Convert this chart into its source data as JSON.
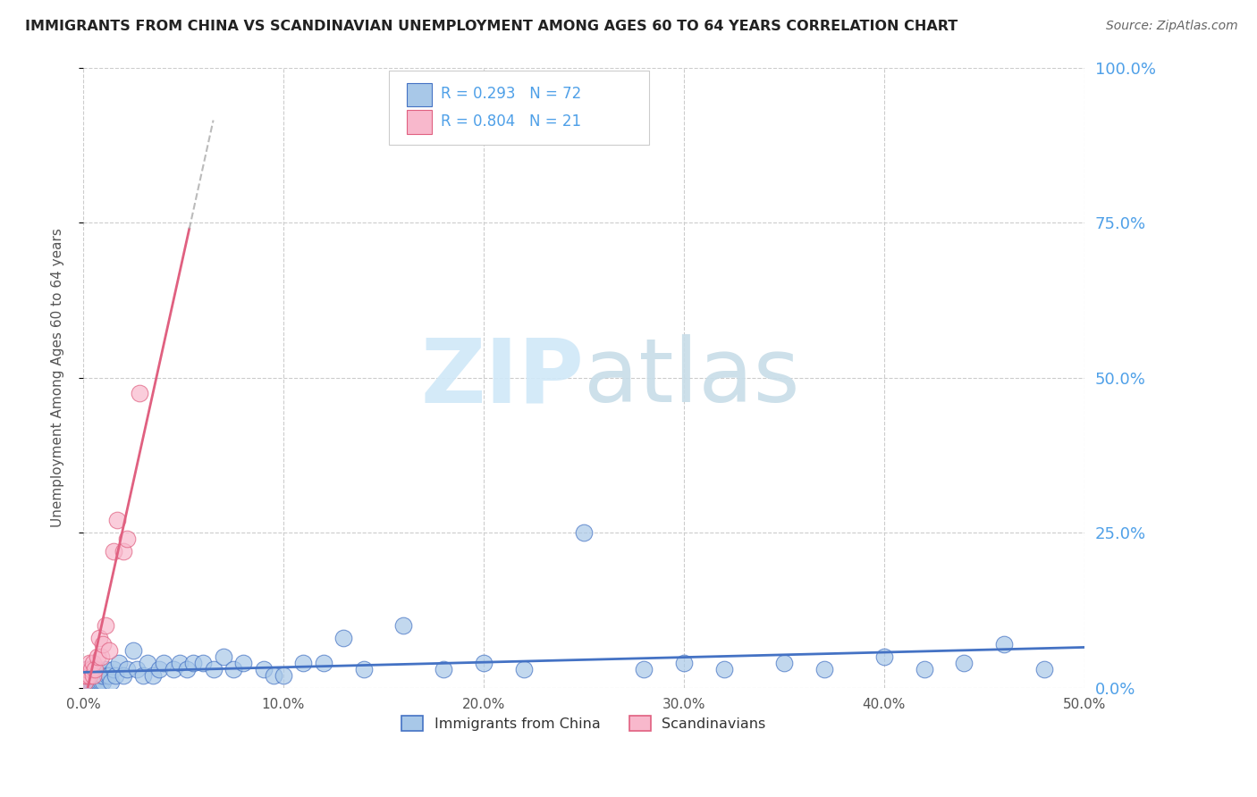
{
  "title": "IMMIGRANTS FROM CHINA VS SCANDINAVIAN UNEMPLOYMENT AMONG AGES 60 TO 64 YEARS CORRELATION CHART",
  "source": "Source: ZipAtlas.com",
  "ylabel": "Unemployment Among Ages 60 to 64 years",
  "legend_label1": "Immigrants from China",
  "legend_label2": "Scandinavians",
  "R1": "0.293",
  "N1": "72",
  "R2": "0.804",
  "N2": "21",
  "xlim": [
    0.0,
    0.5
  ],
  "ylim": [
    0.0,
    1.0
  ],
  "color1": "#a8c8e8",
  "color2": "#f8b8cc",
  "trendline1_color": "#4472c4",
  "trendline2_color": "#e06080",
  "legend_text_color": "#4fa0e8",
  "right_axis_color": "#4fa0e8",
  "watermark_color": "#d0e8f8",
  "xticks": [
    0.0,
    0.1,
    0.2,
    0.3,
    0.4,
    0.5
  ],
  "yticks_right": [
    0.0,
    0.25,
    0.5,
    0.75,
    1.0
  ],
  "china_x": [
    0.001,
    0.001,
    0.002,
    0.002,
    0.002,
    0.003,
    0.003,
    0.003,
    0.004,
    0.004,
    0.005,
    0.005,
    0.005,
    0.005,
    0.006,
    0.006,
    0.007,
    0.007,
    0.007,
    0.008,
    0.008,
    0.009,
    0.009,
    0.01,
    0.01,
    0.011,
    0.012,
    0.013,
    0.014,
    0.015,
    0.016,
    0.018,
    0.02,
    0.022,
    0.025,
    0.027,
    0.03,
    0.032,
    0.035,
    0.038,
    0.04,
    0.045,
    0.048,
    0.052,
    0.055,
    0.06,
    0.065,
    0.07,
    0.075,
    0.08,
    0.09,
    0.095,
    0.1,
    0.11,
    0.12,
    0.13,
    0.14,
    0.16,
    0.18,
    0.2,
    0.22,
    0.25,
    0.28,
    0.3,
    0.32,
    0.35,
    0.37,
    0.4,
    0.42,
    0.44,
    0.46,
    0.48
  ],
  "china_y": [
    0.01,
    0.02,
    0.01,
    0.02,
    0.03,
    0.01,
    0.02,
    0.03,
    0.01,
    0.02,
    0.01,
    0.02,
    0.03,
    0.02,
    0.01,
    0.02,
    0.01,
    0.02,
    0.03,
    0.01,
    0.02,
    0.01,
    0.02,
    0.01,
    0.02,
    0.03,
    0.02,
    0.02,
    0.01,
    0.03,
    0.02,
    0.04,
    0.02,
    0.03,
    0.06,
    0.03,
    0.02,
    0.04,
    0.02,
    0.03,
    0.04,
    0.03,
    0.04,
    0.03,
    0.04,
    0.04,
    0.03,
    0.05,
    0.03,
    0.04,
    0.03,
    0.02,
    0.02,
    0.04,
    0.04,
    0.08,
    0.03,
    0.1,
    0.03,
    0.04,
    0.03,
    0.25,
    0.03,
    0.04,
    0.03,
    0.04,
    0.03,
    0.05,
    0.03,
    0.04,
    0.07,
    0.03
  ],
  "scand_x": [
    0.001,
    0.001,
    0.002,
    0.002,
    0.003,
    0.003,
    0.004,
    0.005,
    0.005,
    0.006,
    0.007,
    0.008,
    0.009,
    0.01,
    0.011,
    0.013,
    0.015,
    0.017,
    0.02,
    0.022,
    0.028
  ],
  "scand_y": [
    0.01,
    0.02,
    0.02,
    0.03,
    0.02,
    0.04,
    0.03,
    0.02,
    0.04,
    0.03,
    0.05,
    0.08,
    0.05,
    0.07,
    0.1,
    0.06,
    0.22,
    0.27,
    0.22,
    0.24,
    0.475
  ],
  "trendline2_x_end": 0.053,
  "trendline2_dashed_x_end": 0.065
}
